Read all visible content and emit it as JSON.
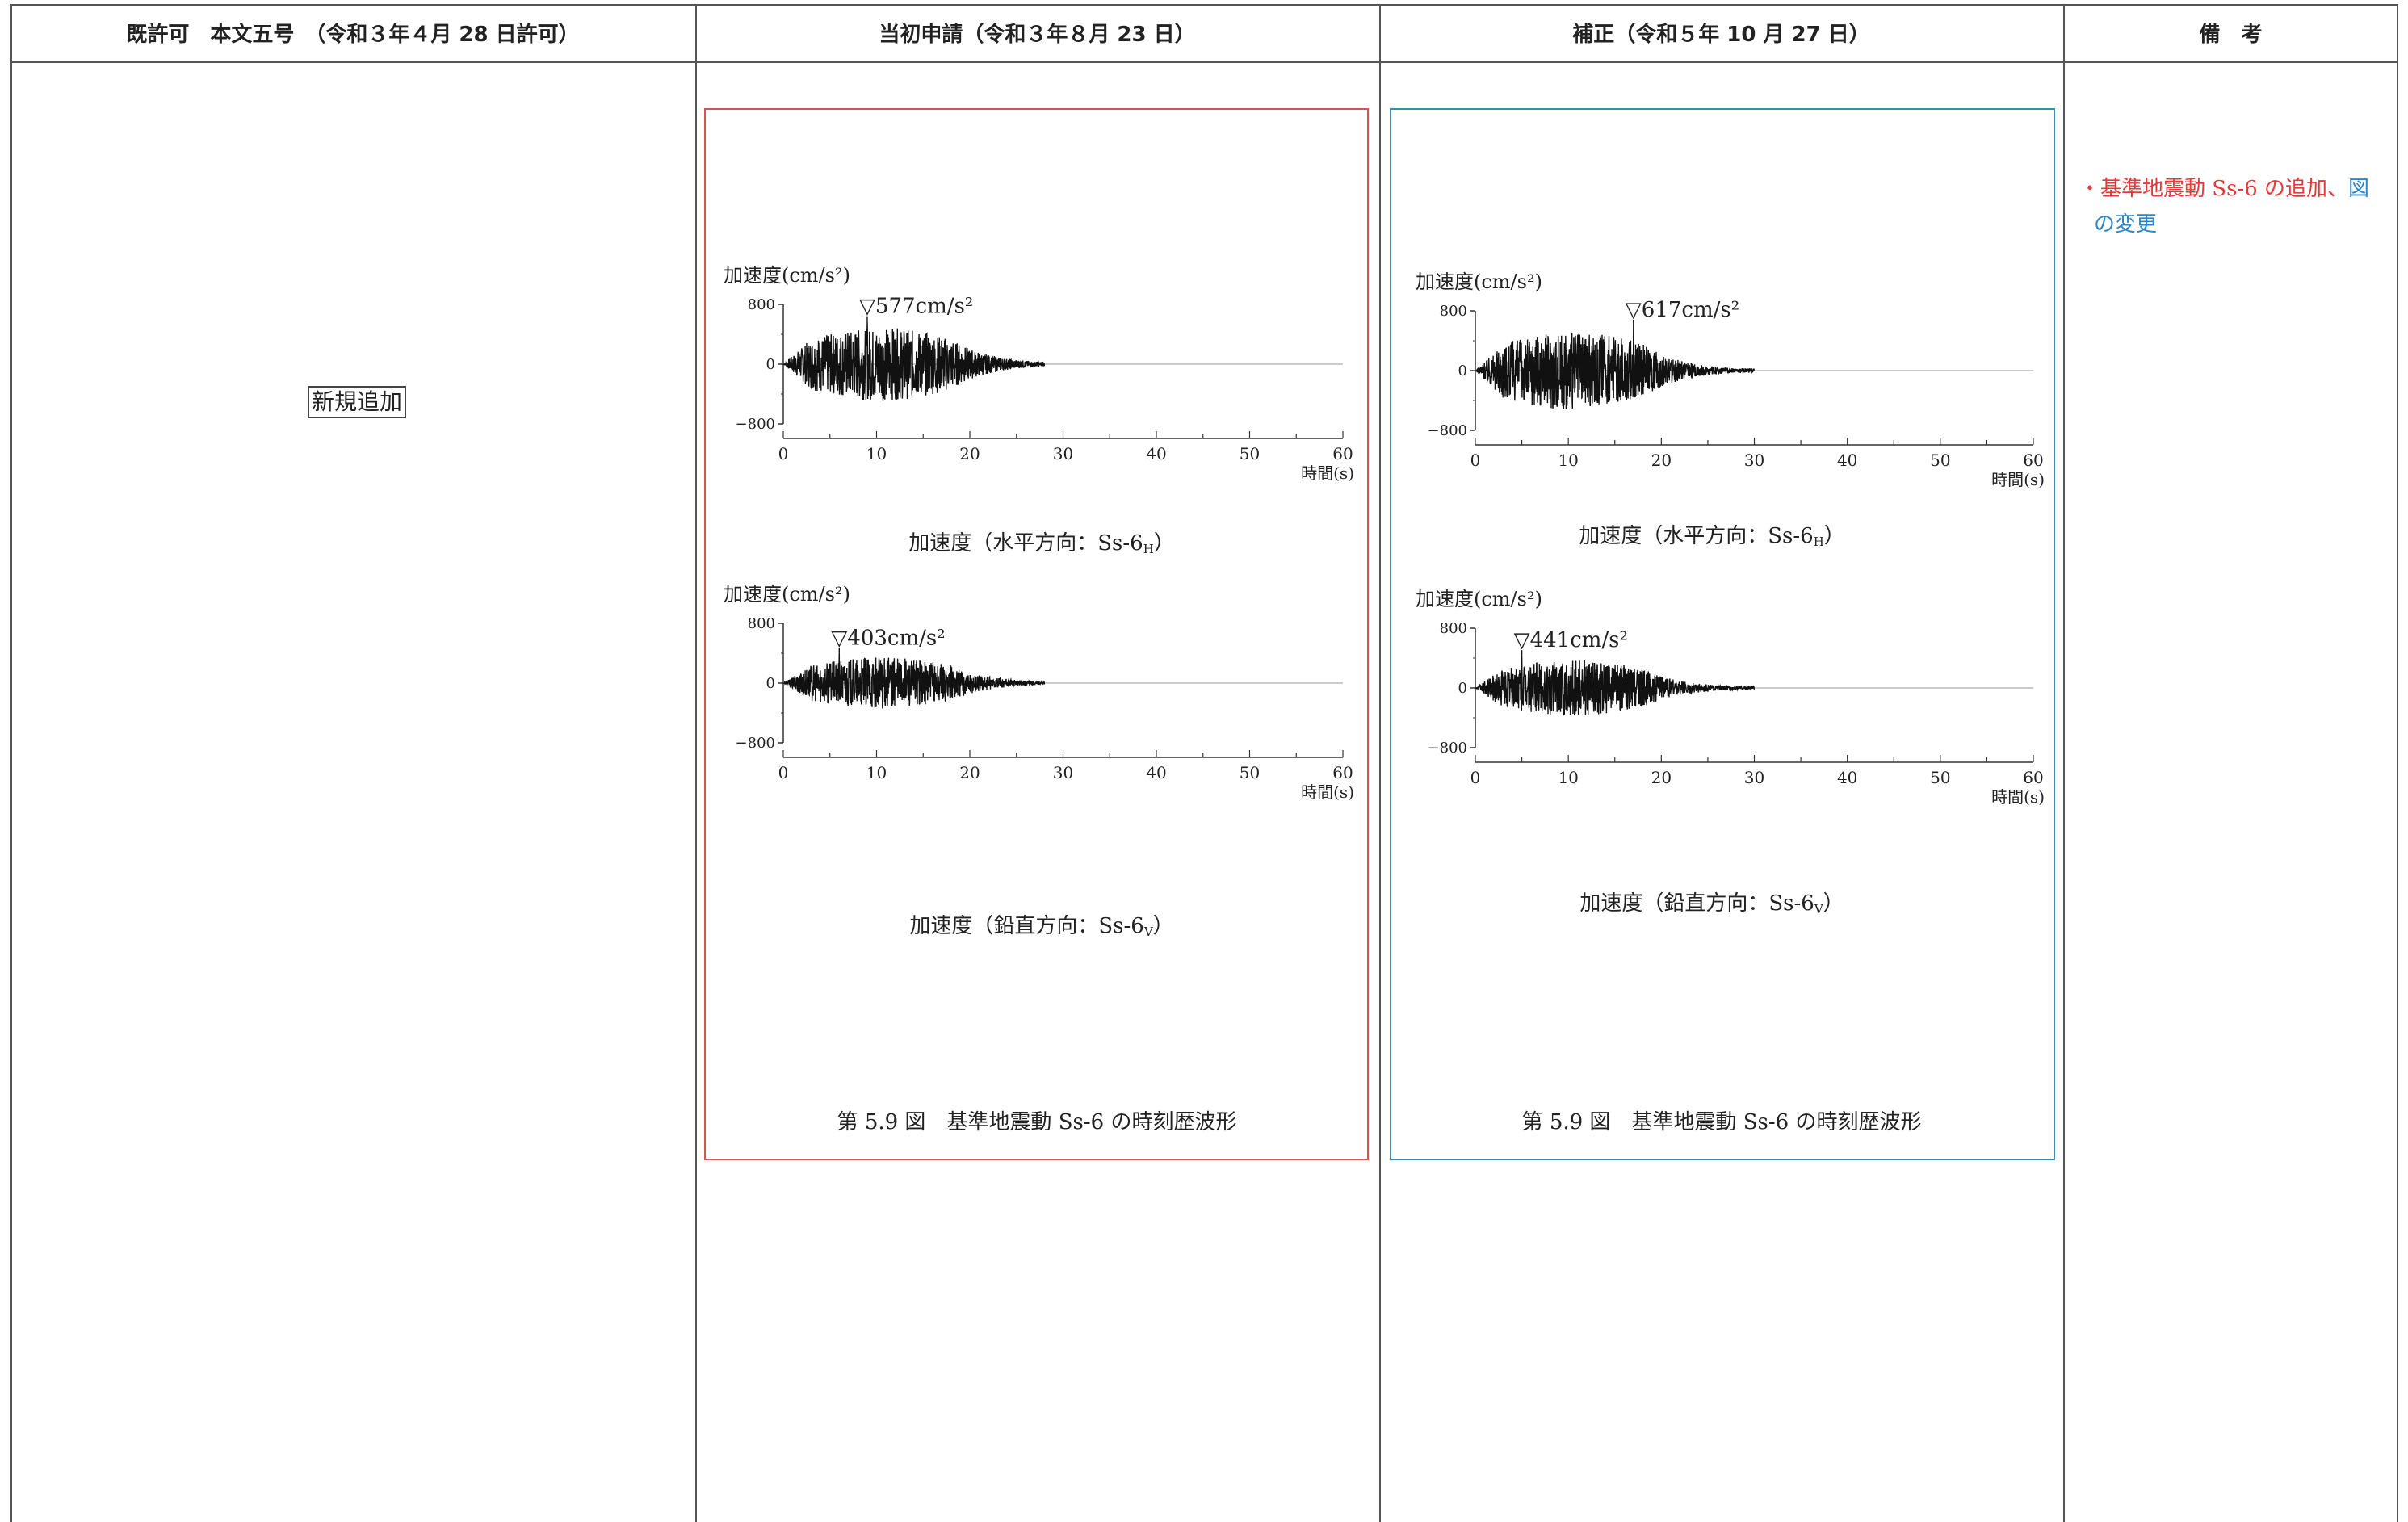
{
  "headers": {
    "col1": "既許可　本文五号　（令和３年４月 28 日許可）",
    "col2": "当初申請（令和３年８月 23 日）",
    "col3": "補正（令和５年 10 月 27 日）",
    "col4": "備　考"
  },
  "col1_label": "新規追加",
  "charts_axis": {
    "ylabel": "加速度(cm/s²)",
    "xlabel": "時間(s)",
    "yticks": [
      "800",
      "0",
      "−800"
    ],
    "xticks": [
      "0",
      "10",
      "20",
      "30",
      "40",
      "50",
      "60"
    ]
  },
  "panel_initial": {
    "horizontal_peak": "▽577cm/s²",
    "vertical_peak": "▽403cm/s²",
    "horizontal_caption": "加速度（水平方向：Ss-6",
    "horizontal_caption_sub": "H",
    "vertical_caption": "加速度（鉛直方向：Ss-6",
    "vertical_caption_sub": "V",
    "caption_close": "）",
    "figure_title": "第 5.9 図　基準地震動 Ss-6 の時刻歴波形"
  },
  "panel_amended": {
    "horizontal_peak": "▽617cm/s²",
    "vertical_peak": "▽441cm/s²",
    "horizontal_caption": "加速度（水平方向：Ss-6",
    "horizontal_caption_sub": "H",
    "vertical_caption": "加速度（鉛直方向：Ss-6",
    "vertical_caption_sub": "V",
    "caption_close": "）",
    "figure_title": "第 5.9 図　基準地震動 Ss-6 の時刻歴波形"
  },
  "remarks": {
    "bullet": "・",
    "red_text": "基準地震動 Ss-6 の追加、",
    "blue_text_1": "図",
    "blue_text_2": "の変更"
  },
  "colors": {
    "initial_border": "#d9534f",
    "amended_border": "#3a8bb5",
    "remark_red": "#e8393a",
    "remark_blue": "#2d86c7"
  },
  "chart_data": [
    {
      "type": "line",
      "title": "加速度（水平方向：Ss-6H）",
      "xlabel": "時間(s)",
      "ylabel": "加速度(cm/s²)",
      "xlim": [
        0,
        60
      ],
      "ylim": [
        -800,
        800
      ],
      "duration": 28,
      "peak": {
        "time": 9,
        "value": 577,
        "label": "▽577cm/s²"
      }
    },
    {
      "type": "line",
      "title": "加速度（鉛直方向：Ss-6V）",
      "xlabel": "時間(s)",
      "ylabel": "加速度(cm/s²)",
      "xlim": [
        0,
        60
      ],
      "ylim": [
        -800,
        800
      ],
      "duration": 28,
      "peak": {
        "time": 6,
        "value": 403,
        "label": "▽403cm/s²"
      }
    },
    {
      "type": "line",
      "title": "加速度（水平方向：Ss-6H）",
      "xlabel": "時間(s)",
      "ylabel": "加速度(cm/s²)",
      "xlim": [
        0,
        60
      ],
      "ylim": [
        -800,
        800
      ],
      "duration": 30,
      "peak": {
        "time": 17,
        "value": 617,
        "label": "▽617cm/s²"
      }
    },
    {
      "type": "line",
      "title": "加速度（鉛直方向：Ss-6V）",
      "xlabel": "時間(s)",
      "ylabel": "加速度(cm/s²)",
      "xlim": [
        0,
        60
      ],
      "ylim": [
        -800,
        800
      ],
      "duration": 30,
      "peak": {
        "time": 5,
        "value": 441,
        "label": "▽441cm/s²"
      }
    }
  ]
}
